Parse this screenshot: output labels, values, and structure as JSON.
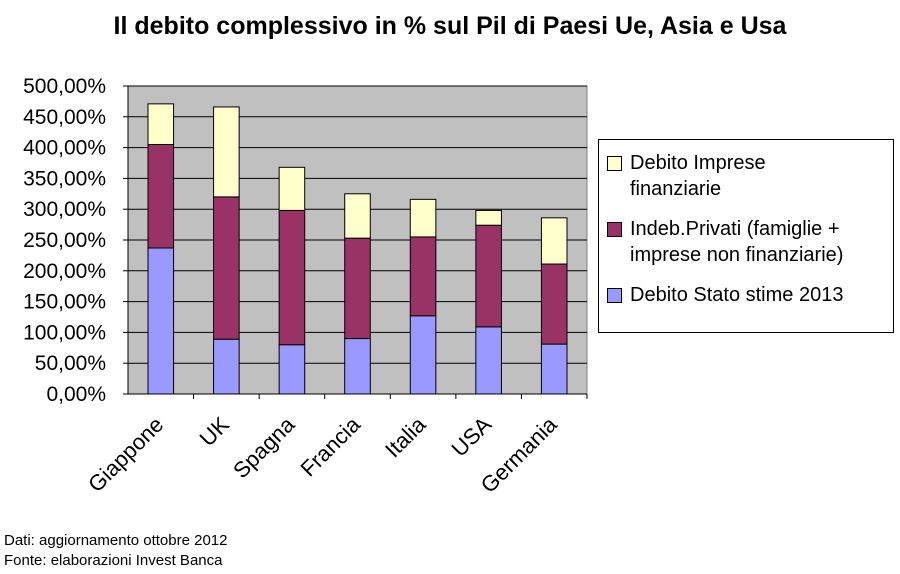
{
  "chart_data": {
    "type": "bar",
    "stacked": true,
    "title": "Il debito complessivo in % sul Pil di Paesi Ue, Asia e Usa",
    "categories": [
      "Giappone",
      "UK",
      "Spagna",
      "Francia",
      "Italia",
      "USA",
      "Germania"
    ],
    "series": [
      {
        "name": "Debito Stato stime 2013",
        "color": "#9999ff",
        "values": [
          237,
          89,
          80,
          90,
          127,
          109,
          81
        ]
      },
      {
        "name": "Indeb.Privati (famiglie + imprese non finanziarie)",
        "color": "#993366",
        "values": [
          168,
          231,
          218,
          163,
          128,
          165,
          130
        ]
      },
      {
        "name": "Debito Imprese finanziarie",
        "color": "#ffffcc",
        "values": [
          66,
          146,
          70,
          72,
          61,
          24,
          75
        ]
      }
    ],
    "legend_order": [
      2,
      1,
      0
    ],
    "legend_labels": [
      "Debito Imprese\nfinanziarie",
      "Indeb.Privati (famiglie +\nimprese non finanziarie)",
      "Debito Stato stime 2013"
    ],
    "ylim": [
      0,
      500
    ],
    "yticks": [
      "0,00%",
      "50,00%",
      "100,00%",
      "150,00%",
      "200,00%",
      "250,00%",
      "300,00%",
      "350,00%",
      "400,00%",
      "450,00%",
      "500,00%"
    ],
    "grid": true,
    "plot_background": "#c0c0c0",
    "legend_position": "right",
    "xlabel": "",
    "ylabel": ""
  },
  "footnotes": {
    "line1": "Dati: aggiornamento ottobre 2012",
    "line2": "Fonte: elaborazioni Invest Banca"
  }
}
